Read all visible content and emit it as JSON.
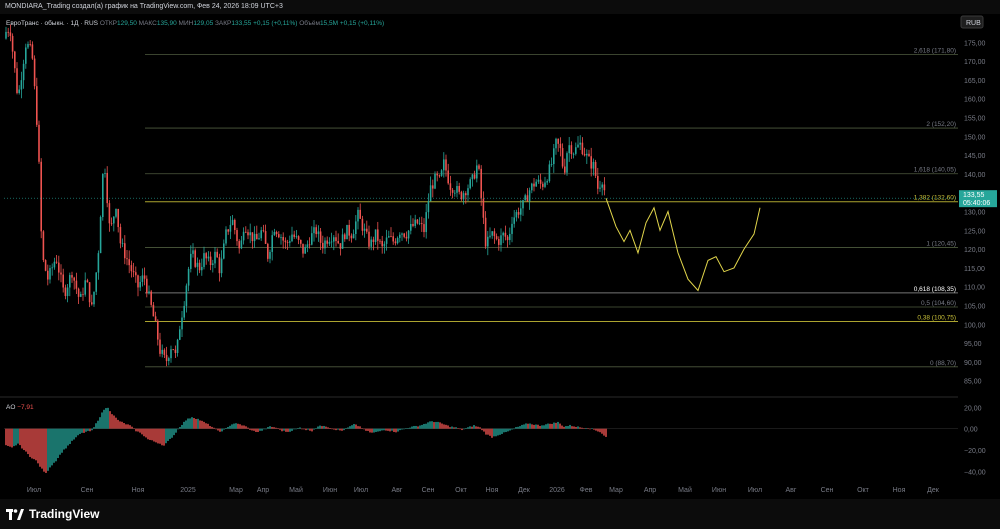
{
  "header": {
    "credit": "MONDIARA_Trading создал(а) график на TradingView.com, Фев 24, 2026 18:09 UTC+3"
  },
  "footer": {
    "brand": "TradingView"
  },
  "colors": {
    "background": "#000000",
    "up": "#26a69a",
    "down": "#ef5350",
    "fib_line": "#5d6b4a",
    "fib_yellow": "#c9c138",
    "projection": "#e2d64b",
    "price_badge": "#26a69a",
    "text": "#d1d4dc",
    "muted": "#787b86"
  },
  "chart_data": [
    {
      "type": "candlestick",
      "symbol_line": {
        "name": "ЕвроТранс · обыкн. · 1Д · RUS",
        "open_label": "ОТКР",
        "open_value": "129,50",
        "high_label": "МАКС",
        "high_value": "135,90",
        "low_label": "МИН",
        "low_value": "129,05",
        "close_label": "ЗАКР",
        "close_value": "133,55",
        "change": "+0,15 (+0,11%)",
        "volume_label": "Объём",
        "volume_value": "15,5M",
        "volume_change": "+0,15 (+0,11%)"
      },
      "currency": "RUB",
      "ylim": [
        82,
        182
      ],
      "y_ticks": [
        "175,00",
        "170,00",
        "165,00",
        "160,00",
        "155,00",
        "150,00",
        "145,00",
        "140,00",
        "135,00",
        "130,00",
        "125,00",
        "120,00",
        "115,00",
        "110,00",
        "105,00",
        "100,00",
        "95,00",
        "90,00",
        "85,00"
      ],
      "x_ticks": [
        "Июл",
        "Сен",
        "Ноя",
        "2025",
        "Мар",
        "Апр",
        "Май",
        "Июн",
        "Июл",
        "Авг",
        "Сен",
        "Окт",
        "Ноя",
        "Дек",
        "2026",
        "Фев",
        "Мар",
        "Апр",
        "Май",
        "Июн",
        "Июл",
        "Авг",
        "Сен",
        "Окт",
        "Ноя",
        "Дек"
      ],
      "last_price": {
        "value": 133.55,
        "label": "133,55",
        "countdown": "05:40:06"
      },
      "fib_levels": [
        {
          "value": 171.8,
          "label": "2,618 (171,80)",
          "emphasis": "muted"
        },
        {
          "value": 152.2,
          "label": "2 (152,20)",
          "emphasis": "muted"
        },
        {
          "value": 140.05,
          "label": "1,618 (140,05)",
          "emphasis": "muted"
        },
        {
          "value": 132.6,
          "label": "1,382 (132,60)",
          "emphasis": "yellow"
        },
        {
          "value": 120.45,
          "label": "1 (120,45)",
          "emphasis": "muted"
        },
        {
          "value": 108.35,
          "label": "0,618 (108,35)",
          "emphasis": "white"
        },
        {
          "value": 104.6,
          "label": "0,5 (104,60)",
          "emphasis": "muted"
        },
        {
          "value": 100.75,
          "label": "0,38 (100,75)",
          "emphasis": "yellow"
        },
        {
          "value": 88.7,
          "label": "0 (88,70)",
          "emphasis": "muted"
        }
      ],
      "price_path": [
        [
          0,
          176
        ],
        [
          10,
          179
        ],
        [
          18,
          160
        ],
        [
          26,
          175
        ],
        [
          32,
          172
        ],
        [
          38,
          150
        ],
        [
          42,
          118
        ],
        [
          48,
          112
        ],
        [
          56,
          118
        ],
        [
          64,
          108
        ],
        [
          72,
          114
        ],
        [
          80,
          106
        ],
        [
          86,
          112
        ],
        [
          92,
          104
        ],
        [
          98,
          118
        ],
        [
          104,
          145
        ],
        [
          110,
          124
        ],
        [
          116,
          132
        ],
        [
          120,
          122
        ],
        [
          126,
          118
        ],
        [
          132,
          114
        ],
        [
          138,
          110
        ],
        [
          144,
          113
        ],
        [
          150,
          106
        ],
        [
          156,
          99
        ],
        [
          160,
          93
        ],
        [
          166,
          90
        ],
        [
          172,
          95
        ],
        [
          176,
          91
        ],
        [
          180,
          100
        ],
        [
          184,
          106
        ],
        [
          188,
          114
        ],
        [
          192,
          119
        ],
        [
          196,
          116
        ],
        [
          200,
          115
        ],
        [
          204,
          118
        ],
        [
          210,
          116
        ],
        [
          216,
          119
        ],
        [
          220,
          114
        ],
        [
          226,
          124
        ],
        [
          232,
          128
        ],
        [
          236,
          124
        ],
        [
          240,
          119
        ],
        [
          244,
          127
        ],
        [
          250,
          124
        ],
        [
          256,
          122
        ],
        [
          262,
          125
        ],
        [
          268,
          118
        ],
        [
          274,
          126
        ],
        [
          280,
          124
        ],
        [
          286,
          121
        ],
        [
          292,
          124
        ],
        [
          298,
          122
        ],
        [
          304,
          119
        ],
        [
          310,
          123
        ],
        [
          316,
          125
        ],
        [
          322,
          121
        ],
        [
          328,
          123
        ],
        [
          334,
          124
        ],
        [
          340,
          121
        ],
        [
          346,
          125
        ],
        [
          352,
          124
        ],
        [
          358,
          129
        ],
        [
          364,
          125
        ],
        [
          370,
          121
        ],
        [
          376,
          124
        ],
        [
          382,
          120
        ],
        [
          388,
          123
        ],
        [
          394,
          122
        ],
        [
          400,
          125
        ],
        [
          406,
          124
        ],
        [
          412,
          126
        ],
        [
          418,
          127
        ],
        [
          424,
          125
        ],
        [
          430,
          136
        ],
        [
          436,
          139
        ],
        [
          440,
          138
        ],
        [
          444,
          143
        ],
        [
          450,
          137
        ],
        [
          456,
          136
        ],
        [
          460,
          134
        ],
        [
          466,
          136
        ],
        [
          472,
          138
        ],
        [
          478,
          143
        ],
        [
          482,
          131
        ],
        [
          486,
          121
        ],
        [
          492,
          124
        ],
        [
          498,
          122
        ],
        [
          504,
          124
        ],
        [
          508,
          122
        ],
        [
          512,
          128
        ],
        [
          518,
          130
        ],
        [
          524,
          132
        ],
        [
          530,
          136
        ],
        [
          536,
          138
        ],
        [
          542,
          137
        ],
        [
          548,
          140
        ],
        [
          552,
          143
        ],
        [
          556,
          148
        ],
        [
          560,
          147
        ],
        [
          564,
          140
        ],
        [
          568,
          148
        ],
        [
          574,
          146
        ],
        [
          580,
          148
        ],
        [
          586,
          145
        ],
        [
          590,
          143
        ],
        [
          594,
          142
        ],
        [
          598,
          136
        ],
        [
          602,
          139
        ],
        [
          606,
          133.55
        ]
      ],
      "projection_path": [
        [
          606,
          133.55
        ],
        [
          616,
          126
        ],
        [
          624,
          122
        ],
        [
          630,
          125
        ],
        [
          638,
          119
        ],
        [
          646,
          127
        ],
        [
          654,
          131
        ],
        [
          660,
          125
        ],
        [
          668,
          130
        ],
        [
          678,
          119
        ],
        [
          688,
          112
        ],
        [
          698,
          109
        ],
        [
          708,
          117
        ],
        [
          716,
          118
        ],
        [
          724,
          114
        ],
        [
          734,
          115
        ],
        [
          744,
          120
        ],
        [
          754,
          124
        ],
        [
          760,
          131
        ]
      ]
    },
    {
      "type": "bar",
      "indicator": "AO",
      "label": "AO",
      "current_value": "−7,91",
      "ylim": [
        -50,
        25
      ],
      "y_ticks": [
        "20,00",
        "0,00",
        "−20,00",
        "−40,00"
      ],
      "profile": [
        [
          0,
          -12
        ],
        [
          6,
          -16
        ],
        [
          12,
          -18
        ],
        [
          18,
          -14
        ],
        [
          24,
          -20
        ],
        [
          30,
          -26
        ],
        [
          36,
          -30
        ],
        [
          42,
          -38
        ],
        [
          46,
          -42
        ],
        [
          50,
          -36
        ],
        [
          56,
          -30
        ],
        [
          62,
          -22
        ],
        [
          68,
          -16
        ],
        [
          74,
          -10
        ],
        [
          80,
          -5
        ],
        [
          86,
          -3
        ],
        [
          92,
          -2
        ],
        [
          98,
          8
        ],
        [
          104,
          18
        ],
        [
          108,
          20
        ],
        [
          112,
          14
        ],
        [
          118,
          8
        ],
        [
          124,
          5
        ],
        [
          130,
          3
        ],
        [
          136,
          -2
        ],
        [
          142,
          -5
        ],
        [
          148,
          -10
        ],
        [
          154,
          -12
        ],
        [
          160,
          -14
        ],
        [
          164,
          -16
        ],
        [
          168,
          -12
        ],
        [
          174,
          -6
        ],
        [
          180,
          2
        ],
        [
          186,
          8
        ],
        [
          192,
          11
        ],
        [
          198,
          9
        ],
        [
          204,
          6
        ],
        [
          210,
          3
        ],
        [
          216,
          -1
        ],
        [
          222,
          -3
        ],
        [
          228,
          2
        ],
        [
          234,
          5
        ],
        [
          240,
          4
        ],
        [
          246,
          2
        ],
        [
          252,
          -2
        ],
        [
          258,
          -3
        ],
        [
          264,
          -1
        ],
        [
          270,
          2
        ],
        [
          276,
          1
        ],
        [
          282,
          -2
        ],
        [
          288,
          -3
        ],
        [
          294,
          -1
        ],
        [
          300,
          1
        ],
        [
          306,
          -1
        ],
        [
          312,
          -2
        ],
        [
          318,
          2
        ],
        [
          324,
          3
        ],
        [
          330,
          1
        ],
        [
          336,
          -1
        ],
        [
          342,
          -2
        ],
        [
          348,
          1
        ],
        [
          354,
          4
        ],
        [
          360,
          2
        ],
        [
          366,
          -2
        ],
        [
          372,
          -4
        ],
        [
          378,
          -3
        ],
        [
          384,
          -1
        ],
        [
          390,
          -2
        ],
        [
          396,
          -3
        ],
        [
          402,
          -1
        ],
        [
          408,
          1
        ],
        [
          414,
          2
        ],
        [
          420,
          3
        ],
        [
          426,
          5
        ],
        [
          432,
          7
        ],
        [
          438,
          6
        ],
        [
          444,
          4
        ],
        [
          450,
          2
        ],
        [
          456,
          1
        ],
        [
          462,
          -1
        ],
        [
          468,
          1
        ],
        [
          474,
          3
        ],
        [
          480,
          1
        ],
        [
          486,
          -5
        ],
        [
          492,
          -8
        ],
        [
          498,
          -6
        ],
        [
          504,
          -4
        ],
        [
          510,
          -2
        ],
        [
          516,
          1
        ],
        [
          522,
          3
        ],
        [
          528,
          5
        ],
        [
          534,
          4
        ],
        [
          540,
          3
        ],
        [
          546,
          4
        ],
        [
          552,
          5
        ],
        [
          558,
          6
        ],
        [
          564,
          2
        ],
        [
          570,
          3
        ],
        [
          576,
          2
        ],
        [
          582,
          1
        ],
        [
          588,
          1
        ],
        [
          594,
          -1
        ],
        [
          600,
          -3
        ],
        [
          606,
          -7.91
        ]
      ]
    }
  ]
}
